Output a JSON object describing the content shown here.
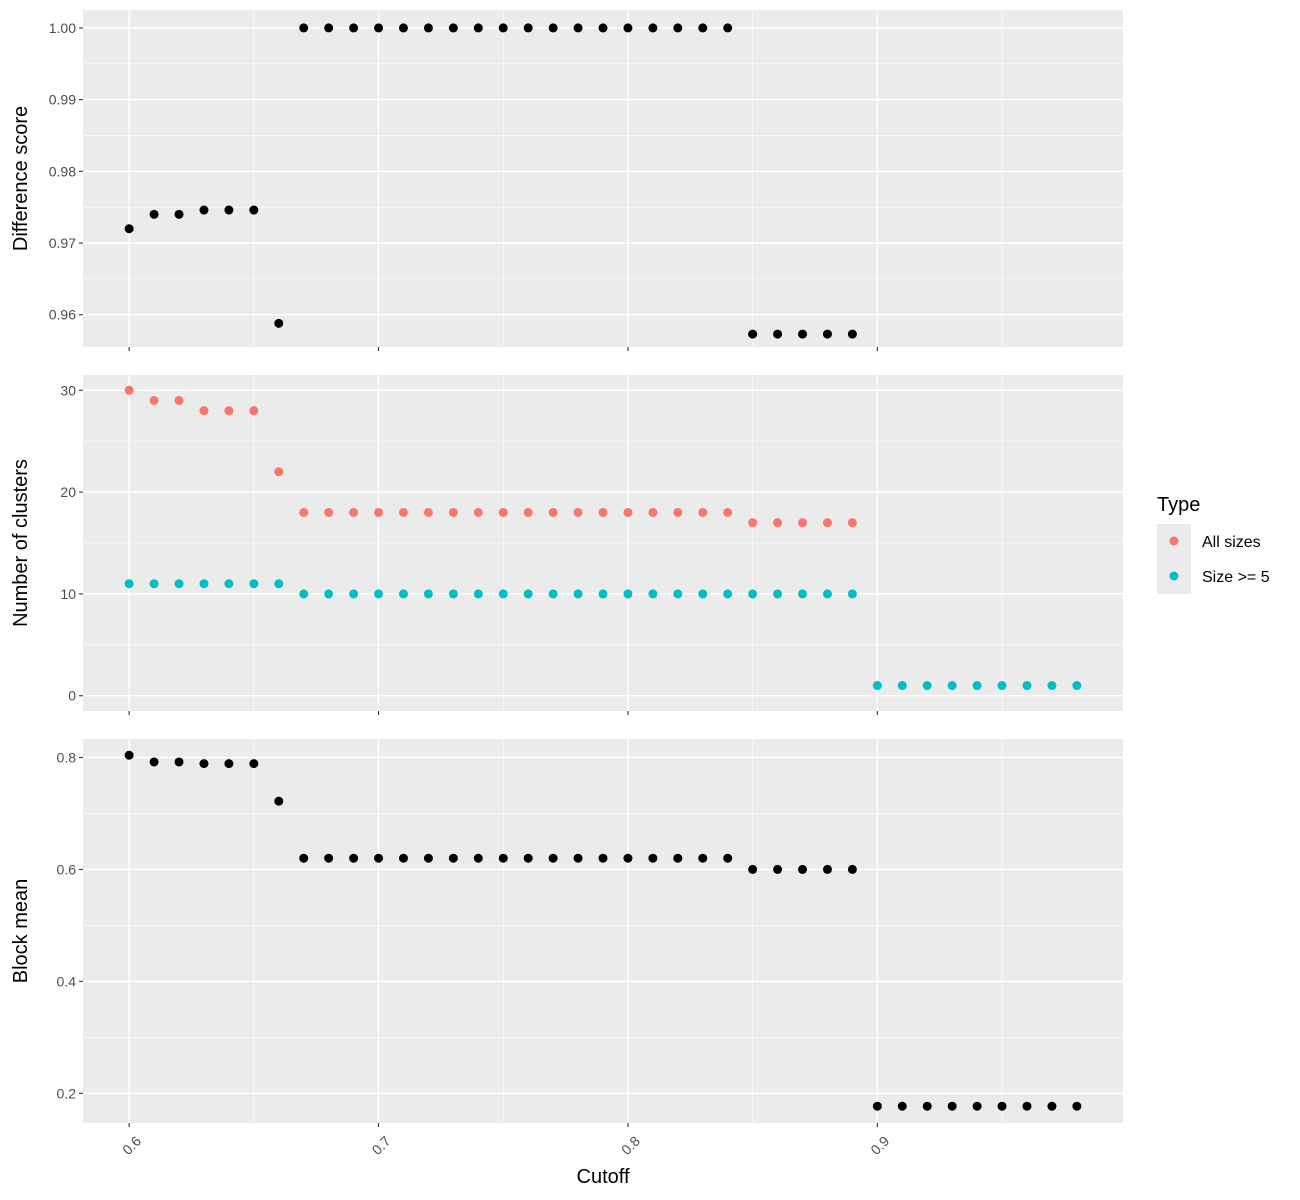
{
  "chart_data": {
    "type": "scatter",
    "xlabel": "Cutoff",
    "x_ticks": [
      "0.6",
      "0.7",
      "0.8",
      "0.9"
    ],
    "grid": true,
    "legend_position": "right",
    "legend": {
      "title": "Type",
      "entries": [
        {
          "label": "All sizes",
          "color": "#F8766D"
        },
        {
          "label": "Size >= 5",
          "color": "#00BFC4"
        }
      ]
    },
    "facets": [
      {
        "ylabel": "Difference score",
        "ylim": [
          0.9555,
          1.0025
        ],
        "y_ticks": [
          "0.96",
          "0.97",
          "0.98",
          "0.99",
          "1.00"
        ],
        "series": [
          {
            "color": "#000000",
            "x": [
              0.6,
              0.61,
              0.62,
              0.63,
              0.64,
              0.65,
              0.66,
              0.67,
              0.68,
              0.69,
              0.7,
              0.71,
              0.72,
              0.73,
              0.74,
              0.75,
              0.76,
              0.77,
              0.78,
              0.79,
              0.8,
              0.81,
              0.82,
              0.83,
              0.84,
              0.85,
              0.86,
              0.87,
              0.88,
              0.89
            ],
            "y": [
              0.972,
              0.974,
              0.974,
              0.9746,
              0.9746,
              0.9746,
              0.9588,
              1.0,
              1.0,
              1.0,
              1.0,
              1.0,
              1.0,
              1.0,
              1.0,
              1.0,
              1.0,
              1.0,
              1.0,
              1.0,
              1.0,
              1.0,
              1.0,
              1.0,
              1.0,
              0.9573,
              0.9573,
              0.9573,
              0.9573,
              0.9573
            ]
          }
        ]
      },
      {
        "ylabel": "Number of clusters",
        "ylim": [
          -1.5,
          31.5
        ],
        "y_ticks": [
          "0",
          "10",
          "20",
          "30"
        ],
        "series": [
          {
            "name": "All sizes",
            "color": "#F8766D",
            "x": [
              0.6,
              0.61,
              0.62,
              0.63,
              0.64,
              0.65,
              0.66,
              0.67,
              0.68,
              0.69,
              0.7,
              0.71,
              0.72,
              0.73,
              0.74,
              0.75,
              0.76,
              0.77,
              0.78,
              0.79,
              0.8,
              0.81,
              0.82,
              0.83,
              0.84,
              0.85,
              0.86,
              0.87,
              0.88,
              0.89
            ],
            "y": [
              30,
              29,
              29,
              28,
              28,
              28,
              22,
              18,
              18,
              18,
              18,
              18,
              18,
              18,
              18,
              18,
              18,
              18,
              18,
              18,
              18,
              18,
              18,
              18,
              18,
              17,
              17,
              17,
              17,
              17
            ]
          },
          {
            "name": "Size >= 5",
            "color": "#00BFC4",
            "x": [
              0.6,
              0.61,
              0.62,
              0.63,
              0.64,
              0.65,
              0.66,
              0.67,
              0.68,
              0.69,
              0.7,
              0.71,
              0.72,
              0.73,
              0.74,
              0.75,
              0.76,
              0.77,
              0.78,
              0.79,
              0.8,
              0.81,
              0.82,
              0.83,
              0.84,
              0.85,
              0.86,
              0.87,
              0.88,
              0.89,
              0.9,
              0.91,
              0.92,
              0.93,
              0.94,
              0.95,
              0.96,
              0.97,
              0.98
            ],
            "y": [
              11,
              11,
              11,
              11,
              11,
              11,
              11,
              10,
              10,
              10,
              10,
              10,
              10,
              10,
              10,
              10,
              10,
              10,
              10,
              10,
              10,
              10,
              10,
              10,
              10,
              10,
              10,
              10,
              10,
              10,
              1,
              1,
              1,
              1,
              1,
              1,
              1,
              1,
              1
            ]
          }
        ]
      },
      {
        "ylabel": "Block mean",
        "ylim": [
          0.147,
          0.833
        ],
        "y_ticks": [
          "0.2",
          "0.4",
          "0.6",
          "0.8"
        ],
        "series": [
          {
            "color": "#000000",
            "x": [
              0.6,
              0.61,
              0.62,
              0.63,
              0.64,
              0.65,
              0.66,
              0.67,
              0.68,
              0.69,
              0.7,
              0.71,
              0.72,
              0.73,
              0.74,
              0.75,
              0.76,
              0.77,
              0.78,
              0.79,
              0.8,
              0.81,
              0.82,
              0.83,
              0.84,
              0.85,
              0.86,
              0.87,
              0.88,
              0.89,
              0.9,
              0.91,
              0.92,
              0.93,
              0.94,
              0.95,
              0.96,
              0.97,
              0.98
            ],
            "y": [
              0.804,
              0.792,
              0.792,
              0.789,
              0.789,
              0.789,
              0.722,
              0.62,
              0.62,
              0.62,
              0.62,
              0.62,
              0.62,
              0.62,
              0.62,
              0.62,
              0.62,
              0.62,
              0.62,
              0.62,
              0.62,
              0.62,
              0.62,
              0.62,
              0.62,
              0.6,
              0.6,
              0.6,
              0.6,
              0.6,
              0.177,
              0.177,
              0.177,
              0.177,
              0.177,
              0.177,
              0.177,
              0.177,
              0.177
            ]
          }
        ]
      }
    ]
  }
}
